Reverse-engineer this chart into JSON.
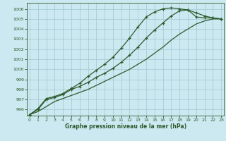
{
  "xlabel": "Graphe pression niveau de la mer (hPa)",
  "bg_color": "#cce8f0",
  "line_color": "#2d5a2d",
  "grid_color": "#a0c8d0",
  "ylim": [
    995.4,
    1006.6
  ],
  "xlim": [
    -0.3,
    23.3
  ],
  "yticks": [
    996,
    997,
    998,
    999,
    1000,
    1001,
    1002,
    1003,
    1004,
    1005,
    1006
  ],
  "xticks": [
    0,
    1,
    2,
    3,
    4,
    5,
    6,
    7,
    8,
    9,
    10,
    11,
    12,
    13,
    14,
    15,
    16,
    17,
    18,
    19,
    20,
    21,
    22,
    23
  ],
  "series_marked1": [
    995.5,
    996.1,
    997.1,
    997.3,
    997.6,
    998.1,
    998.6,
    999.3,
    999.9,
    1000.5,
    1001.2,
    1002.1,
    1003.1,
    1004.2,
    1005.2,
    1005.7,
    1006.0,
    1006.1,
    1006.0,
    1005.9,
    1005.2,
    1005.1,
    1005.1,
    1005.0
  ],
  "series_marked2": [
    995.5,
    996.0,
    997.0,
    997.2,
    997.5,
    998.0,
    998.3,
    998.7,
    999.2,
    999.6,
    1000.1,
    1000.7,
    1001.4,
    1002.2,
    1003.1,
    1003.9,
    1004.6,
    1005.3,
    1005.8,
    1005.9,
    1005.6,
    1005.3,
    1005.1,
    1005.0
  ],
  "series_plain": [
    995.5,
    995.8,
    996.3,
    996.8,
    997.1,
    997.4,
    997.7,
    998.0,
    998.4,
    998.8,
    999.2,
    999.6,
    1000.0,
    1000.5,
    1001.0,
    1001.6,
    1002.2,
    1002.9,
    1003.5,
    1004.0,
    1004.5,
    1004.8,
    1005.0,
    1005.0
  ]
}
